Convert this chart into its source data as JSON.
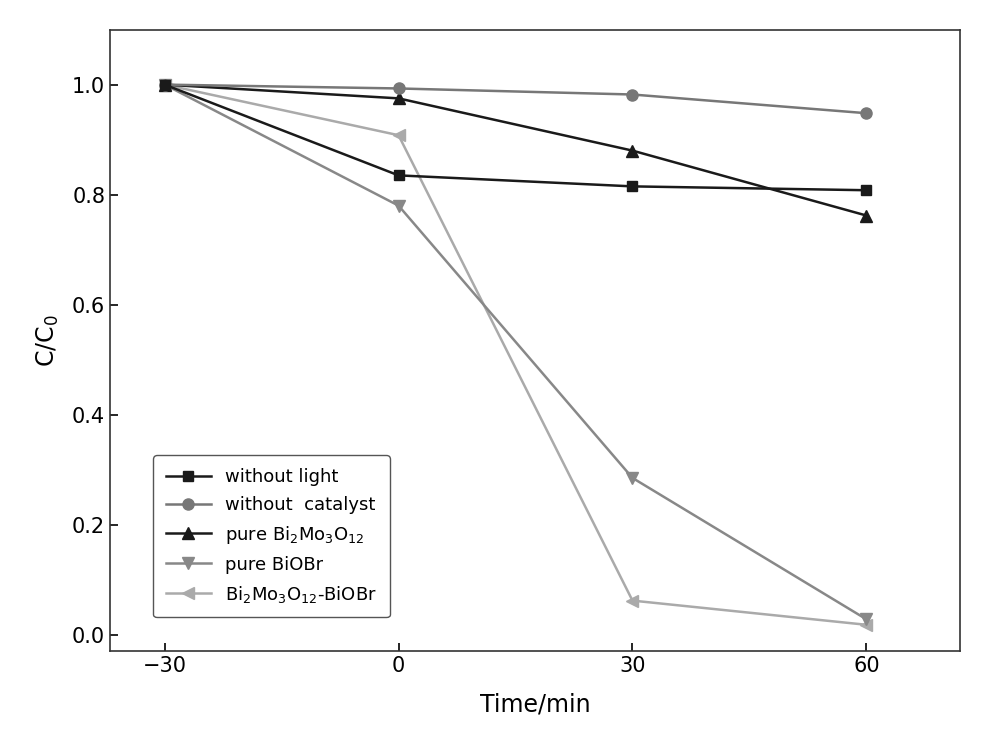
{
  "series": [
    {
      "label": "without light",
      "x": [
        -30,
        0,
        30,
        60
      ],
      "y": [
        1.0,
        0.835,
        0.815,
        0.808
      ],
      "color": "#1a1a1a",
      "marker": "s",
      "markersize": 7,
      "linewidth": 1.8,
      "zorder": 5
    },
    {
      "label": "without  catalyst",
      "x": [
        -30,
        0,
        30,
        60
      ],
      "y": [
        1.0,
        0.993,
        0.982,
        0.948
      ],
      "color": "#777777",
      "marker": "o",
      "markersize": 8,
      "linewidth": 1.8,
      "zorder": 4
    },
    {
      "label": "pure Bi$_2$Mo$_3$O$_{12}$",
      "x": [
        -30,
        0,
        30,
        60
      ],
      "y": [
        1.0,
        0.975,
        0.88,
        0.762
      ],
      "color": "#1a1a1a",
      "marker": "^",
      "markersize": 8,
      "linewidth": 1.8,
      "zorder": 3
    },
    {
      "label": "pure BiOBr",
      "x": [
        -30,
        0,
        30,
        60
      ],
      "y": [
        1.0,
        0.78,
        0.285,
        0.028
      ],
      "color": "#888888",
      "marker": "v",
      "markersize": 8,
      "linewidth": 1.8,
      "zorder": 2
    },
    {
      "label": "Bi$_2$Mo$_3$O$_{12}$-BiOBr",
      "x": [
        -30,
        0,
        30,
        60
      ],
      "y": [
        1.0,
        0.908,
        0.062,
        0.018
      ],
      "color": "#aaaaaa",
      "marker": "<",
      "markersize": 8,
      "linewidth": 1.8,
      "zorder": 1
    }
  ],
  "xlabel": "Time/min",
  "ylabel": "C/C$_0$",
  "xlim": [
    -37,
    72
  ],
  "ylim": [
    -0.03,
    1.1
  ],
  "xticks": [
    -30,
    0,
    30,
    60
  ],
  "yticks": [
    0.0,
    0.2,
    0.4,
    0.6,
    0.8,
    1.0
  ],
  "background_color": "#ffffff",
  "xlabel_fontsize": 17,
  "ylabel_fontsize": 17,
  "tick_fontsize": 15,
  "legend_fontsize": 13
}
